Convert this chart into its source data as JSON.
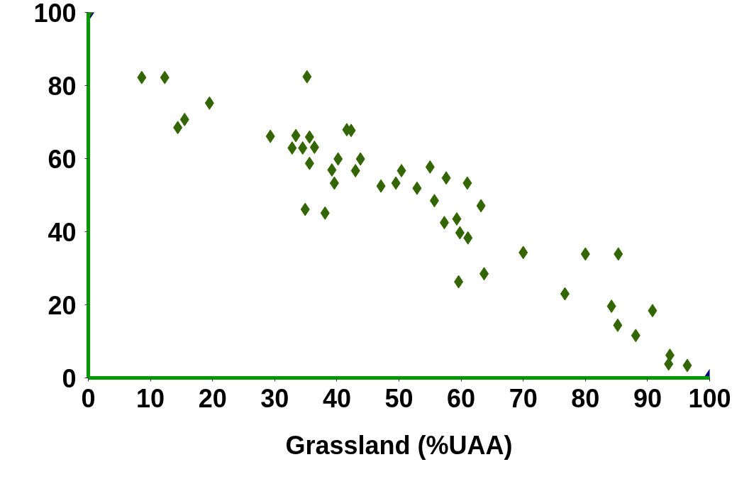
{
  "chart_data": {
    "type": "scatter",
    "xlabel": "Grassland (%UAA)",
    "marker": "diamond",
    "grid": false,
    "xlim": [
      0,
      100
    ],
    "ylim": [
      0,
      100
    ],
    "xticks": [
      0,
      10,
      20,
      30,
      40,
      50,
      60,
      70,
      80,
      90,
      100
    ],
    "yticks": [
      0,
      20,
      40,
      60,
      80,
      100
    ],
    "series": [
      {
        "color": "#000080",
        "x": [
          0,
          100
        ],
        "values": [
          100,
          0
        ]
      },
      {
        "color": "#336600",
        "x": [
          0,
          8.6,
          12.3,
          14.4,
          15.5,
          19.5,
          29.3,
          32.8,
          33.4,
          34.5,
          35.2,
          35.6,
          35.6,
          36.4,
          34.9,
          38.1,
          39.2,
          39.6,
          40.2,
          41.6,
          42.3,
          43.0,
          43.8,
          47.1,
          49.5,
          50.4,
          52.9,
          55.0,
          55.7,
          57.3,
          57.6,
          59.3,
          59.8,
          61.1,
          61.0,
          59.6,
          63.2,
          63.7,
          70.0,
          76.7,
          80.0,
          84.2,
          85.3,
          85.2,
          88.1,
          90.8,
          93.6,
          93.4,
          96.4
        ],
        "values": [
          100,
          82.2,
          82.2,
          68.5,
          70.7,
          75.2,
          66.1,
          62.9,
          66.3,
          62.9,
          82.4,
          65.9,
          58.7,
          63.1,
          46.1,
          45.1,
          56.9,
          53.3,
          59.9,
          67.9,
          67.7,
          56.7,
          59.9,
          52.5,
          53.3,
          56.7,
          51.9,
          57.7,
          48.5,
          42.5,
          54.7,
          43.5,
          39.7,
          38.3,
          53.3,
          26.3,
          47.1,
          28.5,
          34.3,
          23.0,
          33.9,
          19.6,
          33.9,
          14.4,
          11.6,
          18.4,
          6.2,
          3.8,
          3.4
        ]
      }
    ]
  }
}
